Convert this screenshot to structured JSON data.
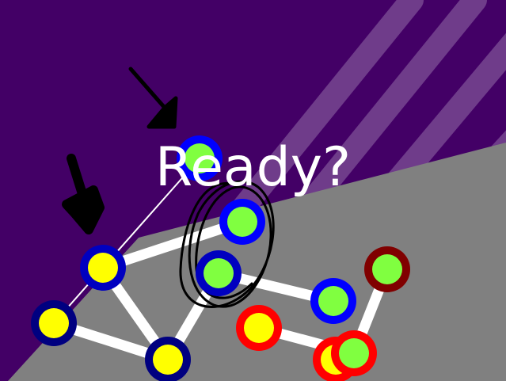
{
  "overlay": {
    "message": "Ready?"
  },
  "colors": {
    "background": "#430066",
    "stripe": "#6f3c8a",
    "floor": "#808080",
    "edge": "#ffffff",
    "pen_stroke": "#000000"
  },
  "edges": [
    {
      "from": "n-top-blue",
      "to": "n-left-low",
      "style": "thin"
    },
    {
      "from": "n-left-mid",
      "to": "n-ring-mid",
      "style": "thick"
    },
    {
      "from": "n-left-mid",
      "to": "n-bottom",
      "style": "thick"
    },
    {
      "from": "n-left-low",
      "to": "n-bottom",
      "style": "thick"
    },
    {
      "from": "n-bottom",
      "to": "n-center-low",
      "style": "thick"
    },
    {
      "from": "n-center-low",
      "to": "n-right-blue",
      "style": "thick"
    },
    {
      "from": "n-red-left",
      "to": "n-red-right",
      "style": "thick"
    },
    {
      "from": "n-red-right",
      "to": "n-maroon",
      "style": "thick"
    }
  ],
  "nodes": [
    {
      "id": "n-top-blue",
      "fill": "#80ff40",
      "ring": "#0000ff"
    },
    {
      "id": "n-ring-mid",
      "fill": "#80ff40",
      "ring": "#0000ff"
    },
    {
      "id": "n-left-mid",
      "fill": "#ffff00",
      "ring": "#0000c0"
    },
    {
      "id": "n-center-low",
      "fill": "#80ff40",
      "ring": "#0000c0"
    },
    {
      "id": "n-left-low",
      "fill": "#ffff00",
      "ring": "#000080"
    },
    {
      "id": "n-bottom",
      "fill": "#ffff00",
      "ring": "#000080"
    },
    {
      "id": "n-right-blue",
      "fill": "#80ff40",
      "ring": "#0000ff"
    },
    {
      "id": "n-maroon",
      "fill": "#80ff40",
      "ring": "#800000"
    },
    {
      "id": "n-red-left",
      "fill": "#ffff00",
      "ring": "#ff0000"
    },
    {
      "id": "n-red-hidden",
      "fill": "#ffff00",
      "ring": "#ff0000"
    },
    {
      "id": "n-red-right",
      "fill": "#80ff40",
      "ring": "#ff0000"
    }
  ]
}
